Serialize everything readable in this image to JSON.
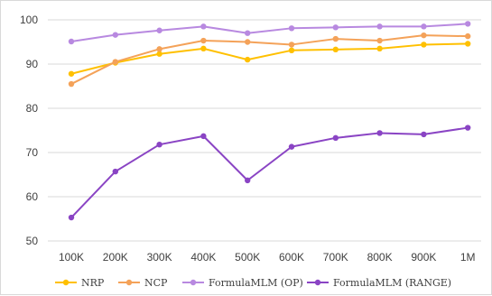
{
  "chart_data": {
    "type": "line",
    "title": "",
    "xlabel": "",
    "ylabel": "",
    "categories": [
      "100K",
      "200K",
      "300K",
      "400K",
      "500K",
      "600K",
      "700K",
      "800K",
      "900K",
      "1M"
    ],
    "ylim": [
      50,
      100
    ],
    "yticks": [
      50,
      60,
      70,
      80,
      90,
      100
    ],
    "grid": "horizontal",
    "legend_position": "bottom",
    "series": [
      {
        "name": "NRP",
        "color": "#ffc000",
        "values": [
          87.8,
          90.3,
          92.3,
          93.5,
          91.0,
          93.1,
          93.3,
          93.5,
          94.4,
          94.6
        ]
      },
      {
        "name": "NCP",
        "color": "#f4a259",
        "values": [
          85.5,
          90.5,
          93.4,
          95.3,
          95.0,
          94.4,
          95.7,
          95.3,
          96.5,
          96.3
        ]
      },
      {
        "name": "FormulaMLM (OP)",
        "color": "#b889e0",
        "values": [
          95.1,
          96.6,
          97.6,
          98.5,
          97.0,
          98.1,
          98.3,
          98.5,
          98.5,
          99.1
        ]
      },
      {
        "name": "FormulaMLM (RANGE)",
        "color": "#8a44c4",
        "values": [
          55.3,
          65.7,
          71.8,
          73.7,
          63.7,
          71.3,
          73.3,
          74.4,
          74.1,
          75.6
        ]
      }
    ]
  }
}
